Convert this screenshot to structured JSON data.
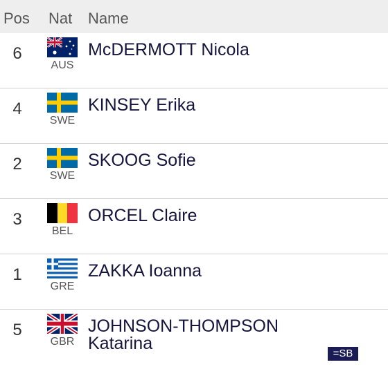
{
  "table": {
    "header": [
      "Pos",
      "Nat",
      "Name"
    ],
    "rows": [
      {
        "pos": "6",
        "nat": "AUS",
        "name": "McDERMOTT Nicola"
      },
      {
        "pos": "4",
        "nat": "SWE",
        "name": "KINSEY Erika"
      },
      {
        "pos": "2",
        "nat": "SWE",
        "name": "SKOOG Sofie"
      },
      {
        "pos": "3",
        "nat": "BEL",
        "name": "ORCEL Claire"
      },
      {
        "pos": "1",
        "nat": "GRE",
        "name": "ZAKKA Ioanna"
      },
      {
        "pos": "5",
        "nat": "GBR",
        "name": "JOHNSON-THOMPSON Katarina",
        "note": "=SB"
      }
    ]
  }
}
